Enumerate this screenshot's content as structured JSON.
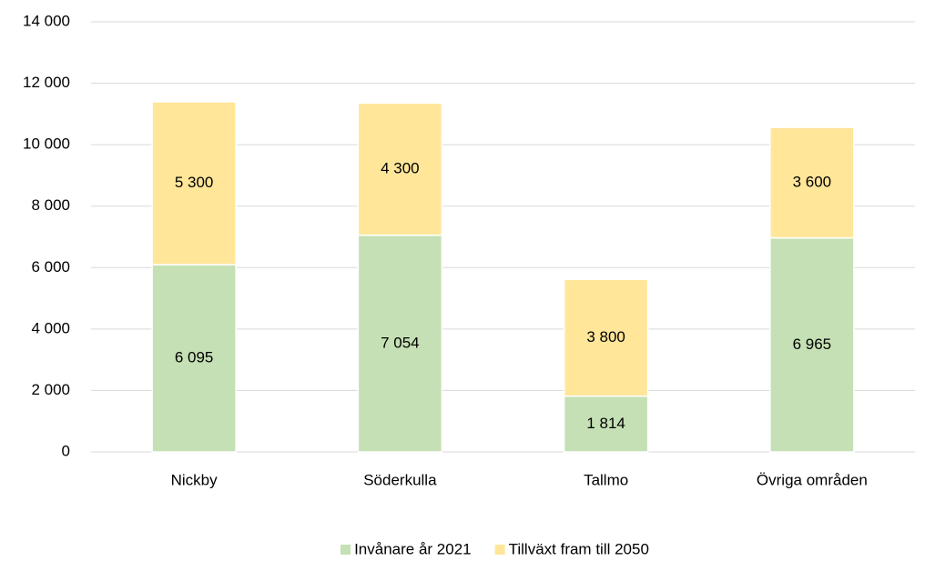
{
  "chart_data": {
    "type": "stacked_bar",
    "categories": [
      "Nickby",
      "Söderkulla",
      "Tallmo",
      "Övriga områden"
    ],
    "series": [
      {
        "name": "Invånare år 2021",
        "color": "#c5e0b4",
        "values": [
          6095,
          7054,
          1814,
          6965
        ],
        "value_labels": [
          "6 095",
          "7 054",
          "1 814",
          "6 965"
        ]
      },
      {
        "name": "Tillväxt fram till 2050",
        "color": "#ffe699",
        "values": [
          5300,
          4300,
          3800,
          3600
        ],
        "value_labels": [
          "5 300",
          "4 300",
          "3 800",
          "3 600"
        ]
      }
    ],
    "ylim": [
      0,
      14000
    ],
    "yticks": [
      0,
      {
        "value": 2000,
        "label": "2 000"
      },
      {
        "value": 4000,
        "label": "4 000"
      },
      {
        "value": 6000,
        "label": "6 000"
      },
      {
        "value": 8000,
        "label": "8 000"
      },
      {
        "value": 10000,
        "label": "10 000"
      },
      {
        "value": 12000,
        "label": "12 000"
      },
      {
        "value": 14000,
        "label": "14 000"
      }
    ],
    "grid": true,
    "legend": "bottom"
  }
}
